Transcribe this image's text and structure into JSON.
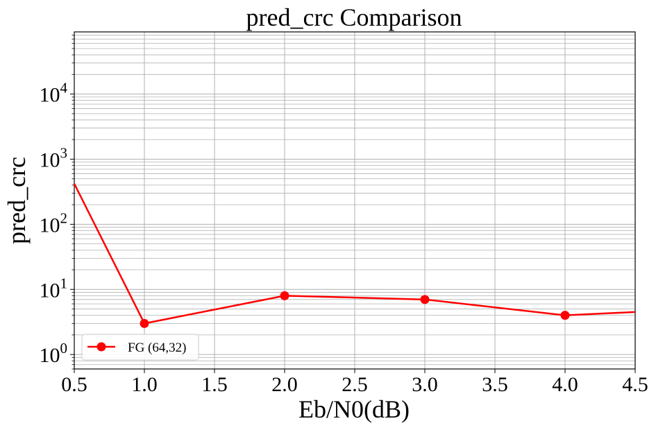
{
  "chart_data": {
    "type": "line",
    "title": "pred_crc Comparison",
    "xlabel": "Eb/N0(dB)",
    "ylabel": "pred_crc",
    "xlim": [
      0.5,
      4.5
    ],
    "ylim": [
      0.6,
      90000
    ],
    "yscale": "log",
    "grid": true,
    "legend_location": "lower-left",
    "x_ticks": [
      "0.5",
      "1.0",
      "1.5",
      "2.0",
      "2.5",
      "3.0",
      "3.5",
      "4.0",
      "4.5"
    ],
    "y_ticks": [
      {
        "base": "10",
        "exp": "0"
      },
      {
        "base": "10",
        "exp": "1"
      },
      {
        "base": "10",
        "exp": "2"
      },
      {
        "base": "10",
        "exp": "3"
      },
      {
        "base": "10",
        "exp": "4"
      }
    ],
    "series": [
      {
        "name": "FG (64,32)",
        "color": "#ff0000",
        "marker": "circle",
        "x": [
          0.5,
          1.0,
          2.0,
          3.0,
          4.0,
          4.5
        ],
        "y": [
          420,
          3,
          8,
          7,
          4,
          4.5
        ],
        "marker_shown": [
          false,
          true,
          true,
          true,
          true,
          false
        ]
      }
    ]
  }
}
